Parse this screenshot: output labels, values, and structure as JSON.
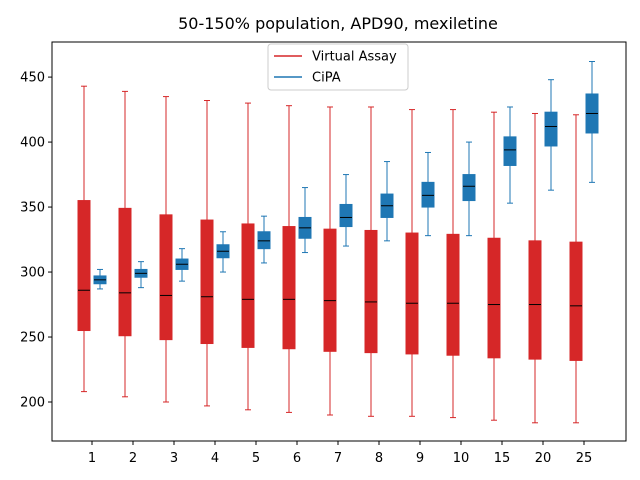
{
  "chart_data": {
    "type": "box",
    "title": "50-150% population, APD90, mexiletine",
    "xlabel": "",
    "ylabel": "",
    "categories": [
      "1",
      "2",
      "3",
      "4",
      "5",
      "6",
      "7",
      "8",
      "9",
      "10",
      "15",
      "20",
      "25"
    ],
    "ylim": [
      170,
      477
    ],
    "yticks": [
      200,
      250,
      300,
      350,
      400,
      450
    ],
    "grid": false,
    "legend": "upper center",
    "series": [
      {
        "name": "Virtual Assay",
        "color": "#d62728",
        "boxes": [
          {
            "whislo": 208,
            "q1": 255,
            "med": 286,
            "q3": 355,
            "whishi": 443
          },
          {
            "whislo": 204,
            "q1": 251,
            "med": 284,
            "q3": 349,
            "whishi": 439
          },
          {
            "whislo": 200,
            "q1": 248,
            "med": 282,
            "q3": 344,
            "whishi": 435
          },
          {
            "whislo": 197,
            "q1": 245,
            "med": 281,
            "q3": 340,
            "whishi": 432
          },
          {
            "whislo": 194,
            "q1": 242,
            "med": 279,
            "q3": 337,
            "whishi": 430
          },
          {
            "whislo": 192,
            "q1": 241,
            "med": 279,
            "q3": 335,
            "whishi": 428
          },
          {
            "whislo": 190,
            "q1": 239,
            "med": 278,
            "q3": 333,
            "whishi": 427
          },
          {
            "whislo": 189,
            "q1": 238,
            "med": 277,
            "q3": 332,
            "whishi": 427
          },
          {
            "whislo": 189,
            "q1": 237,
            "med": 276,
            "q3": 330,
            "whishi": 425
          },
          {
            "whislo": 188,
            "q1": 236,
            "med": 276,
            "q3": 329,
            "whishi": 425
          },
          {
            "whislo": 186,
            "q1": 234,
            "med": 275,
            "q3": 326,
            "whishi": 423
          },
          {
            "whislo": 184,
            "q1": 233,
            "med": 275,
            "q3": 324,
            "whishi": 422
          },
          {
            "whislo": 184,
            "q1": 232,
            "med": 274,
            "q3": 323,
            "whishi": 421
          }
        ]
      },
      {
        "name": "CiPA",
        "color": "#1f77b4",
        "boxes": [
          {
            "whislo": 287,
            "q1": 291,
            "med": 294,
            "q3": 297,
            "whishi": 302
          },
          {
            "whislo": 288,
            "q1": 296,
            "med": 299,
            "q3": 302,
            "whishi": 308
          },
          {
            "whislo": 293,
            "q1": 302,
            "med": 306,
            "q3": 310,
            "whishi": 318
          },
          {
            "whislo": 300,
            "q1": 311,
            "med": 316,
            "q3": 321,
            "whishi": 331
          },
          {
            "whislo": 307,
            "q1": 318,
            "med": 324,
            "q3": 331,
            "whishi": 343
          },
          {
            "whislo": 315,
            "q1": 326,
            "med": 334,
            "q3": 342,
            "whishi": 365
          },
          {
            "whislo": 320,
            "q1": 335,
            "med": 342,
            "q3": 352,
            "whishi": 375
          },
          {
            "whislo": 324,
            "q1": 342,
            "med": 351,
            "q3": 360,
            "whishi": 385
          },
          {
            "whislo": 328,
            "q1": 350,
            "med": 359,
            "q3": 369,
            "whishi": 392
          },
          {
            "whislo": 328,
            "q1": 355,
            "med": 366,
            "q3": 375,
            "whishi": 400
          },
          {
            "whislo": 353,
            "q1": 382,
            "med": 394,
            "q3": 404,
            "whishi": 427
          },
          {
            "whislo": 363,
            "q1": 397,
            "med": 412,
            "q3": 423,
            "whishi": 448
          },
          {
            "whislo": 369,
            "q1": 407,
            "med": 422,
            "q3": 437,
            "whishi": 462
          }
        ]
      }
    ]
  }
}
